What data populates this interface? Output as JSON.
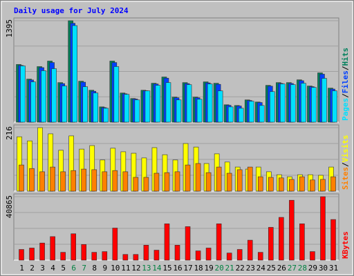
{
  "chart_data": [
    {
      "type": "bar",
      "title": "Daily usage for July 2024",
      "title_color": "#0000ff",
      "series": [
        {
          "name": "Hits",
          "color": "#00805c",
          "values": [
            793,
            592,
            764,
            840,
            544,
            1395,
            563,
            439,
            210,
            840,
            401,
            325,
            439,
            535,
            621,
            344,
            544,
            344,
            554,
            535,
            239,
            229,
            306,
            277,
            506,
            544,
            544,
            582,
            497,
            678,
            468
          ]
        },
        {
          "name": "Files",
          "color": "#0040ff",
          "values": [
            780,
            580,
            750,
            820,
            530,
            1360,
            550,
            425,
            200,
            820,
            390,
            318,
            432,
            525,
            605,
            336,
            530,
            336,
            540,
            520,
            232,
            222,
            298,
            270,
            495,
            532,
            532,
            570,
            488,
            660,
            455
          ]
        },
        {
          "name": "Pages",
          "color": "#00e0ff",
          "values": [
            773,
            554,
            707,
            735,
            497,
            1328,
            487,
            401,
            191,
            764,
            382,
            306,
            430,
            506,
            544,
            306,
            516,
            315,
            525,
            430,
            210,
            191,
            287,
            229,
            420,
            525,
            516,
            535,
            478,
            602,
            430
          ]
        }
      ],
      "ylim": [
        0,
        1395
      ],
      "yticks": [
        1395
      ],
      "legend_separator": "/"
    },
    {
      "type": "bar",
      "series": [
        {
          "name": "Visits",
          "color": "#ffff00",
          "values": [
            185,
            171,
            216,
            195,
            139,
            188,
            143,
            155,
            106,
            146,
            134,
            129,
            113,
            148,
            124,
            106,
            162,
            150,
            94,
            127,
            99,
            82,
            75,
            82,
            66,
            56,
            49,
            56,
            56,
            54,
            82
          ]
        },
        {
          "name": "Sites",
          "color": "#ff8000",
          "values": [
            89,
            77,
            66,
            82,
            66,
            70,
            75,
            73,
            66,
            70,
            66,
            47,
            47,
            61,
            63,
            66,
            89,
            94,
            63,
            82,
            61,
            73,
            82,
            49,
            47,
            45,
            40,
            49,
            38,
            40,
            49
          ]
        }
      ],
      "ylim": [
        0,
        216
      ],
      "yticks": [
        216
      ],
      "legend_separator": "/"
    },
    {
      "type": "bar",
      "series": [
        {
          "name": "KBytes",
          "color": "#ff0000",
          "values": [
            6886,
            7804,
            11016,
            15147,
            5049,
            16983,
            10098,
            5049,
            5508,
            20655,
            3672,
            3672,
            9639,
            6426,
            23409,
            9639,
            21573,
            5967,
            7804,
            23409,
            4590,
            6886,
            12852,
            5049,
            21114,
            27540,
            38556,
            23409,
            5508,
            40865,
            26163
          ]
        }
      ],
      "ylim": [
        0,
        40865
      ],
      "yticks": [
        40865
      ],
      "categories": [
        "1",
        "2",
        "3",
        "4",
        "5",
        "6",
        "7",
        "8",
        "9",
        "10",
        "11",
        "12",
        "13",
        "14",
        "15",
        "16",
        "17",
        "18",
        "19",
        "20",
        "21",
        "22",
        "23",
        "24",
        "25",
        "26",
        "27",
        "28",
        "29",
        "30",
        "31"
      ],
      "highlight_categories": [
        "6",
        "7",
        "13",
        "14",
        "20",
        "21",
        "27",
        "28"
      ],
      "highlight_color": "#008040"
    }
  ]
}
